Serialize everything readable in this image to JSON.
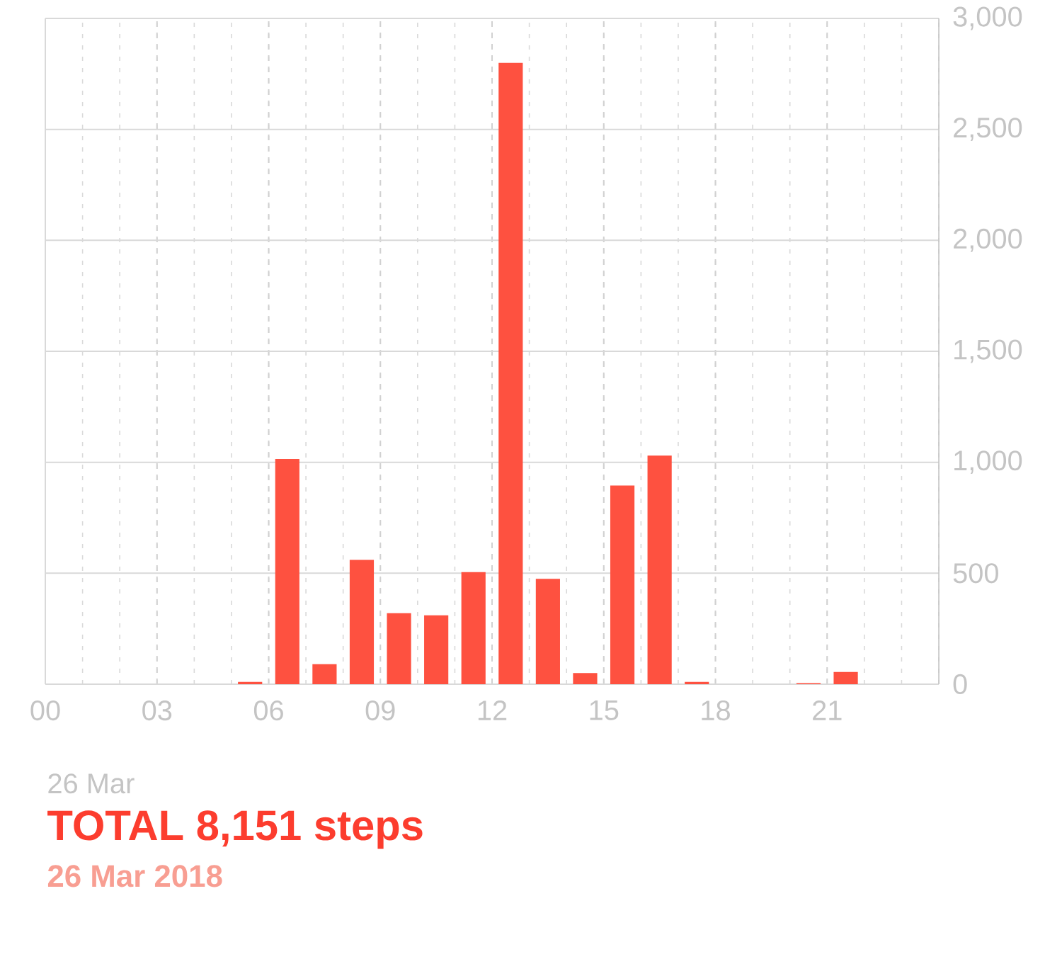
{
  "chart_data": {
    "type": "bar",
    "title": "TOTAL 8,151 steps",
    "subtitle": "26 Mar 2018",
    "annotations": [
      "26 Mar"
    ],
    "x": [
      0.5,
      1.5,
      2.5,
      3.5,
      4.5,
      5.5,
      6.5,
      7.5,
      8.5,
      9.5,
      10.5,
      11.5,
      12.5,
      13.5,
      14.5,
      15.5,
      16.5,
      17.5,
      18.5,
      19.5,
      20.5,
      21.5,
      22.5,
      23.5
    ],
    "values": [
      0,
      0,
      0,
      0,
      0,
      10,
      1015,
      90,
      560,
      320,
      310,
      505,
      2800,
      475,
      50,
      895,
      1030,
      10,
      0,
      0,
      5,
      55,
      0,
      0
    ],
    "color": "#fe5140",
    "xlim": [
      0,
      24
    ],
    "xticks": [
      {
        "value": 0,
        "label": "00"
      },
      {
        "value": 3,
        "label": "03"
      },
      {
        "value": 6,
        "label": "06"
      },
      {
        "value": 9,
        "label": "09"
      },
      {
        "value": 12,
        "label": "12"
      },
      {
        "value": 15,
        "label": "15"
      },
      {
        "value": 18,
        "label": "18"
      },
      {
        "value": 21,
        "label": "21"
      }
    ],
    "ylim": [
      0,
      3000
    ],
    "yticks": [
      {
        "value": 0,
        "label": "0"
      },
      {
        "value": 500,
        "label": "500"
      },
      {
        "value": 1000,
        "label": "1,000"
      },
      {
        "value": 1500,
        "label": "1,500"
      },
      {
        "value": 2000,
        "label": "2,000"
      },
      {
        "value": 2500,
        "label": "2,500"
      },
      {
        "value": 3000,
        "label": "3,000"
      }
    ],
    "grid": true
  }
}
